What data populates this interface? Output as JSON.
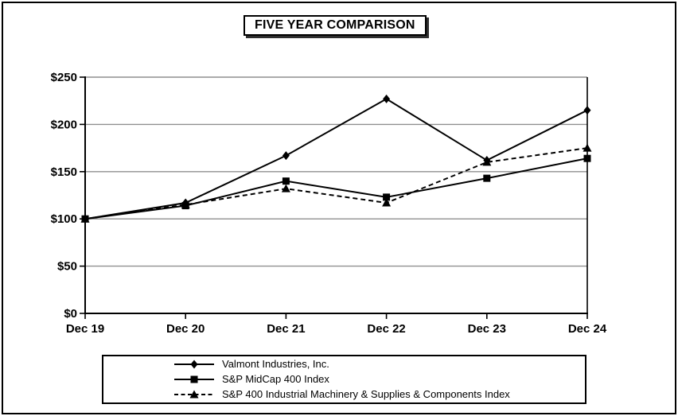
{
  "figure": {
    "title": "FIVE YEAR COMPARISON"
  },
  "chart_data": {
    "type": "line",
    "title": "FIVE YEAR COMPARISON",
    "categories": [
      "Dec 19",
      "Dec 20",
      "Dec 21",
      "Dec 22",
      "Dec 23",
      "Dec 24"
    ],
    "series": [
      {
        "name": "Valmont Industries, Inc.",
        "marker": "diamond",
        "line": "solid",
        "values": [
          100,
          117,
          167,
          227,
          162,
          215
        ]
      },
      {
        "name": "S&P MidCap 400 Index",
        "marker": "square",
        "line": "solid",
        "values": [
          100,
          114,
          140,
          123,
          143,
          164
        ]
      },
      {
        "name": "S&P 400 Industrial Machinery & Supplies & Components Index",
        "marker": "triangle",
        "line": "dashed",
        "values": [
          100,
          115,
          132,
          117,
          160,
          175
        ]
      }
    ],
    "xlabel": "",
    "ylabel": "",
    "ylim": [
      0,
      250
    ],
    "y_tick_values": [
      0,
      50,
      100,
      150,
      200,
      250
    ],
    "y_tick_labels": [
      "$0",
      "$50",
      "$100",
      "$150",
      "$200",
      "$250"
    ],
    "grid": true,
    "legend_position": "bottom",
    "colors": {
      "series": "#000000",
      "grid": "#8f8f8f",
      "axis": "#000000",
      "background": "#ffffff"
    }
  }
}
